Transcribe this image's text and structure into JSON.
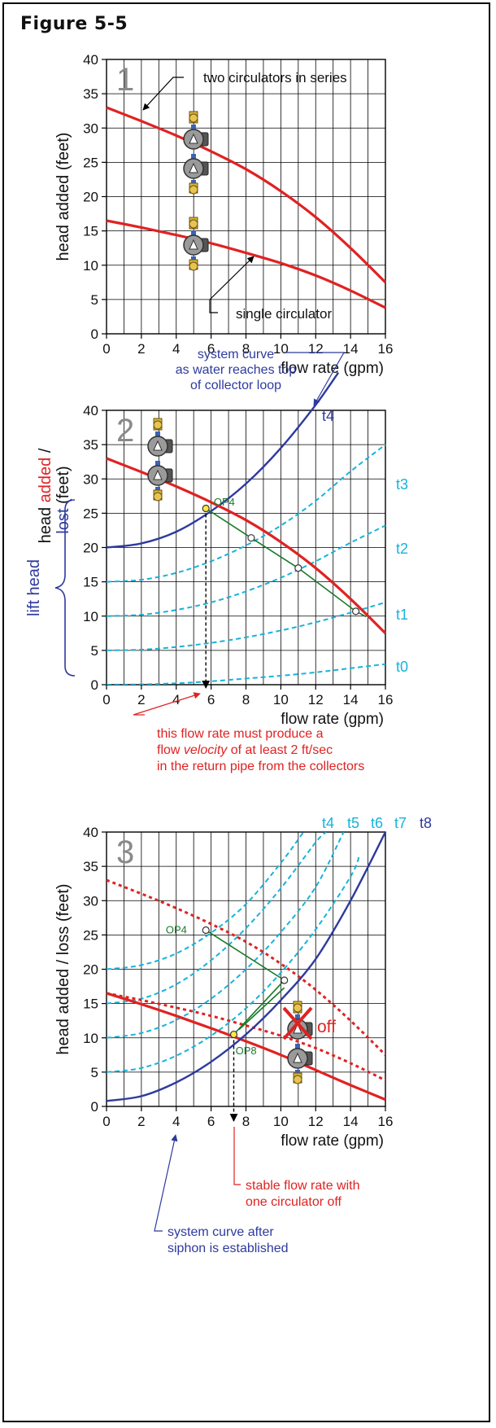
{
  "figure_title": "Figure 5-5",
  "colors": {
    "pump_curve": "#e02222",
    "system_curve": "#2e3a9e",
    "dashed_system": "#17b3db",
    "op_link": "#1a7a2a",
    "grid": "#000000",
    "annotation_red": "#e02222",
    "annotation_blue": "#2e3a9e"
  },
  "chart_data": [
    {
      "panel_number": "1",
      "type": "line",
      "xlabel": "flow rate (gpm)",
      "ylabel": "head added (feet)",
      "xlim": [
        0,
        16
      ],
      "ylim": [
        0,
        40
      ],
      "xticks": [
        "0",
        "2",
        "4",
        "6",
        "8",
        "10",
        "12",
        "14",
        "16"
      ],
      "yticks": [
        "0",
        "5",
        "10",
        "15",
        "20",
        "25",
        "30",
        "35",
        "40"
      ],
      "grid": true,
      "series": [
        {
          "name": "two circulators in series",
          "x": [
            0,
            2,
            4,
            6,
            8,
            10,
            12,
            14,
            16
          ],
          "y": [
            33.0,
            31.0,
            28.9,
            26.6,
            24.0,
            20.8,
            17.0,
            12.5,
            7.5
          ]
        },
        {
          "name": "single circulator",
          "x": [
            0,
            2,
            4,
            6,
            8,
            10,
            12,
            14,
            16
          ],
          "y": [
            16.5,
            15.5,
            14.4,
            13.2,
            11.8,
            10.3,
            8.5,
            6.3,
            3.8
          ]
        }
      ],
      "annotations": [
        "two circulators in series",
        "single circulator"
      ]
    },
    {
      "panel_number": "2",
      "type": "line",
      "xlabel": "flow rate (gpm)",
      "ylabel_parts": [
        "head ",
        "added",
        " /",
        "lost",
        " (feet)"
      ],
      "xlim": [
        0,
        16
      ],
      "ylim": [
        0,
        40
      ],
      "xticks": [
        "0",
        "2",
        "4",
        "6",
        "8",
        "10",
        "12",
        "14",
        "16"
      ],
      "yticks": [
        "0",
        "5",
        "10",
        "15",
        "20",
        "25",
        "30",
        "35",
        "40"
      ],
      "grid": true,
      "series": [
        {
          "name": "two circulators in series",
          "x": [
            0,
            2,
            4,
            6,
            8,
            10,
            12,
            14,
            16
          ],
          "y": [
            33.0,
            31.0,
            28.9,
            26.6,
            24.0,
            20.8,
            17.0,
            12.5,
            7.5
          ]
        },
        {
          "name": "t4",
          "x": [
            0,
            2,
            4,
            6,
            8,
            10,
            12,
            13.3
          ],
          "y": [
            20.0,
            20.6,
            22.3,
            25.3,
            29.3,
            34.5,
            40.8,
            45.5
          ]
        },
        {
          "name": "t3",
          "x": [
            0,
            2,
            4,
            6,
            8,
            10,
            12,
            14,
            16
          ],
          "y": [
            15.0,
            15.3,
            16.3,
            18.0,
            20.3,
            23.2,
            26.8,
            31.1,
            35.0
          ]
        },
        {
          "name": "t2",
          "x": [
            0,
            2,
            4,
            6,
            8,
            10,
            12,
            14,
            16
          ],
          "y": [
            10.0,
            10.2,
            10.9,
            12.0,
            13.6,
            15.6,
            18.0,
            20.7,
            23.2
          ]
        },
        {
          "name": "t1",
          "x": [
            0,
            2,
            4,
            6,
            8,
            10,
            12,
            14,
            16
          ],
          "y": [
            5.0,
            5.1,
            5.5,
            6.1,
            6.9,
            7.9,
            9.1,
            10.5,
            12.0
          ]
        },
        {
          "name": "t0",
          "x": [
            0,
            2,
            4,
            6,
            8,
            10,
            12,
            14,
            16
          ],
          "y": [
            0.0,
            0.05,
            0.2,
            0.5,
            0.9,
            1.3,
            1.8,
            2.4,
            3.0
          ]
        }
      ],
      "operating_points": [
        {
          "label": "OP4",
          "x": 5.7,
          "y": 25.7
        },
        {
          "label": "",
          "x": 8.3,
          "y": 21.4
        },
        {
          "label": "",
          "x": 11.0,
          "y": 17.0
        },
        {
          "label": "",
          "x": 14.3,
          "y": 10.7
        }
      ],
      "curve_labels": [
        "t4",
        "t3",
        "t2",
        "t1",
        "t0"
      ],
      "side_label": "lift head",
      "top_annotation": [
        "system curve",
        "as water reaches top",
        "of collector loop"
      ],
      "bottom_annotation": [
        "this flow rate must produce a",
        "flow ",
        "velocity",
        " of at least 2 ft/sec",
        "in the return pipe from the collectors"
      ]
    },
    {
      "panel_number": "3",
      "type": "line",
      "xlabel": "flow rate (gpm)",
      "ylabel": "head added / loss (feet)",
      "xlim": [
        0,
        16
      ],
      "ylim": [
        0,
        40
      ],
      "xticks": [
        "0",
        "2",
        "4",
        "6",
        "8",
        "10",
        "12",
        "14",
        "16"
      ],
      "yticks": [
        "0",
        "5",
        "10",
        "15",
        "20",
        "25",
        "30",
        "35",
        "40"
      ],
      "grid": true,
      "series": [
        {
          "name": "two circulators (dotted)",
          "x": [
            0,
            2,
            4,
            6,
            8,
            10,
            12,
            14,
            16
          ],
          "y": [
            33.0,
            31.0,
            28.9,
            26.6,
            24.0,
            20.8,
            17.0,
            12.5,
            7.5
          ]
        },
        {
          "name": "single circulator (dotted)",
          "x": [
            0,
            2,
            4,
            6,
            8,
            10,
            12,
            14,
            16
          ],
          "y": [
            16.5,
            15.5,
            14.4,
            13.2,
            11.8,
            10.3,
            8.5,
            6.3,
            3.8
          ]
        },
        {
          "name": "single circulator",
          "x": [
            0,
            2,
            4,
            6,
            8,
            10,
            12,
            14,
            16
          ],
          "y": [
            16.5,
            14.9,
            13.2,
            11.4,
            9.5,
            7.5,
            5.3,
            3.1,
            1.0
          ]
        },
        {
          "name": "t8",
          "x": [
            0,
            2,
            4,
            6,
            8,
            10,
            12,
            14,
            16
          ],
          "y": [
            0.8,
            1.5,
            3.5,
            6.5,
            10.5,
            15.5,
            21.5,
            30.0,
            40.0
          ]
        },
        {
          "name": "t4",
          "x": [
            0,
            2,
            4,
            6,
            8,
            10,
            11.3
          ],
          "y": [
            20.0,
            20.6,
            22.3,
            25.3,
            29.5,
            35.5,
            40.0
          ]
        },
        {
          "name": "t5",
          "x": [
            0,
            2,
            4,
            6,
            8,
            10,
            12,
            12.6
          ],
          "y": [
            15.0,
            15.7,
            17.8,
            21.3,
            26.0,
            31.8,
            38.5,
            40.0
          ]
        },
        {
          "name": "t6",
          "x": [
            0,
            2,
            4,
            6,
            8,
            10,
            12,
            13.6
          ],
          "y": [
            10.0,
            10.7,
            12.6,
            15.7,
            20.0,
            25.4,
            32.0,
            40.0
          ]
        },
        {
          "name": "t7",
          "x": [
            0,
            2,
            4,
            6,
            8,
            10,
            12,
            14,
            14.5
          ],
          "y": [
            5.0,
            5.6,
            7.4,
            10.3,
            14.3,
            19.5,
            25.8,
            33.5,
            36.5
          ]
        }
      ],
      "operating_points": [
        {
          "label": "OP4",
          "x": 5.7,
          "y": 25.7
        },
        {
          "label": "",
          "x": 10.2,
          "y": 18.4
        },
        {
          "label": "OP8",
          "x": 7.3,
          "y": 10.5
        }
      ],
      "curve_labels": [
        "t4",
        "t5",
        "t6",
        "t7",
        "t8"
      ],
      "off_label": "off",
      "bottom_annotation_red": [
        "stable flow rate with",
        "one circulator off"
      ],
      "bottom_annotation_blue": [
        "system curve after",
        "siphon is established"
      ]
    }
  ]
}
